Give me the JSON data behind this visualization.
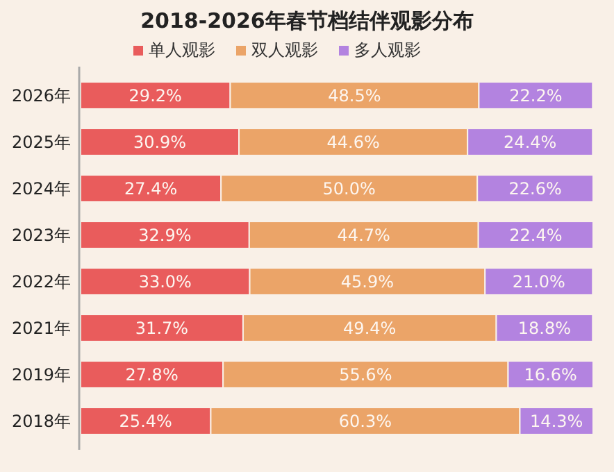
{
  "chart_data": {
    "type": "bar",
    "orientation": "horizontal",
    "stacked": true,
    "title": "2018-2026年春节档结伴观影分布",
    "legend": "top",
    "categories": [
      "2026年",
      "2025年",
      "2024年",
      "2023年",
      "2022年",
      "2021年",
      "2019年",
      "2018年"
    ],
    "series": [
      {
        "name": "单人观影",
        "color": "#e95c5c",
        "values": [
          29.2,
          30.9,
          27.4,
          32.9,
          33.0,
          31.7,
          27.8,
          25.4
        ],
        "value_labels": [
          "29.2%",
          "30.9%",
          "27.4%",
          "32.9%",
          "33.0%",
          "31.7%",
          "27.8%",
          "25.4%"
        ]
      },
      {
        "name": "双人观影",
        "color": "#eba468",
        "values": [
          48.5,
          44.6,
          50.0,
          44.7,
          45.9,
          49.4,
          55.6,
          60.3
        ],
        "value_labels": [
          "48.5%",
          "44.6%",
          "50.0%",
          "44.7%",
          "45.9%",
          "49.4%",
          "55.6%",
          "60.3%"
        ]
      },
      {
        "name": "多人观影",
        "color": "#b383e0",
        "values": [
          22.2,
          24.4,
          22.6,
          22.4,
          21.0,
          18.8,
          16.6,
          14.3
        ],
        "value_labels": [
          "22.2%",
          "24.4%",
          "22.6%",
          "22.4%",
          "21.0%",
          "18.8%",
          "16.6%",
          "14.3%"
        ]
      }
    ]
  }
}
